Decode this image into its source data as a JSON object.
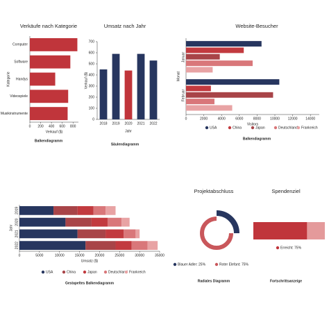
{
  "chart_data": [
    {
      "type": "hbar",
      "title": "Verkäufe nach Kategorie",
      "caption": "Balkendiagramm",
      "categories": [
        "Computer",
        "Software",
        "Handys",
        "Videospiele",
        "Musikinstrumente"
      ],
      "values": [
        880,
        750,
        470,
        710,
        700
      ],
      "color": "#c0353b",
      "xlabel": "Verkauf ($)",
      "ylabel": "Kategorie",
      "xlim": [
        0,
        900
      ],
      "xticks": [
        0,
        200,
        400,
        600,
        800
      ]
    },
    {
      "type": "bar",
      "title": "Umsatz nach Jahr",
      "caption": "Säulendiagramm",
      "categories": [
        "2018",
        "2019",
        "2020",
        "2021",
        "2022"
      ],
      "values": [
        450,
        590,
        440,
        590,
        530
      ],
      "colors": [
        "#27365f",
        "#27365f",
        "#c0353b",
        "#27365f",
        "#27365f"
      ],
      "xlabel": "Jahr",
      "ylabel": "Verkauf ($)",
      "ylim": [
        0,
        700
      ],
      "yticks": [
        0,
        100,
        200,
        300,
        400,
        500,
        600,
        700
      ]
    },
    {
      "type": "grouped_hbar",
      "title": "Website-Besucher",
      "caption": "Balkendiagramm",
      "categories": [
        "Januar",
        "Februar"
      ],
      "xlabel": "Visitors",
      "ylabel": "Monat",
      "xlim": [
        0,
        15000
      ],
      "xticks": [
        0,
        2000,
        4000,
        6000,
        8000,
        10000,
        12000,
        14000
      ],
      "series": [
        {
          "name": "USA",
          "color": "#27365f",
          "values": [
            8500,
            10500
          ]
        },
        {
          "name": "China",
          "color": "#c23a3f",
          "values": [
            6500,
            2800
          ]
        },
        {
          "name": "Japan",
          "color": "#a84448",
          "values": [
            3800,
            9800
          ]
        },
        {
          "name": "Deutschland",
          "color": "#d9777a",
          "values": [
            7500,
            3200
          ]
        },
        {
          "name": "Frankreich",
          "color": "#e8a3a4",
          "values": [
            3000,
            5200
          ]
        }
      ]
    },
    {
      "type": "stacked_hbar",
      "caption": "Gestapeltes Balkendiagramm",
      "categories": [
        "2019",
        "2020",
        "2021",
        "2022"
      ],
      "xlabel": "Umsatz ($)",
      "ylabel": "Jahr",
      "xlim": [
        0,
        35000
      ],
      "xticks": [
        0,
        5000,
        10000,
        15000,
        20000,
        25000,
        30000,
        35000
      ],
      "series": [
        {
          "name": "USA",
          "color": "#27365f",
          "values": [
            8500,
            11500,
            14500,
            16500
          ]
        },
        {
          "name": "China",
          "color": "#a84448",
          "values": [
            6000,
            6500,
            7000,
            7500
          ]
        },
        {
          "name": "Japan",
          "color": "#c23a3f",
          "values": [
            4000,
            4000,
            4500,
            4000
          ]
        },
        {
          "name": "Deutschland",
          "color": "#d9777a",
          "values": [
            3000,
            3500,
            3000,
            4000
          ]
        },
        {
          "name": "Frankreich",
          "color": "#e8a3a4",
          "values": [
            2500,
            2000,
            1000,
            2500
          ]
        }
      ]
    },
    {
      "type": "radial",
      "title": "Projektabschluss",
      "caption": "Radiales Diagramm",
      "series": [
        {
          "name": "Blauer Adler: 25%",
          "color": "#27365f",
          "value": 25
        },
        {
          "name": "Roter Elefant: 75%",
          "color": "#c9575b",
          "value": 75
        }
      ]
    },
    {
      "type": "progress",
      "title": "Spendenziel",
      "caption": "Fortschrittsanzeige",
      "series": [
        {
          "name": "Erreicht: 75%",
          "color": "#c0353b",
          "value": 75
        }
      ],
      "rest_color": "#e49a9b"
    }
  ]
}
